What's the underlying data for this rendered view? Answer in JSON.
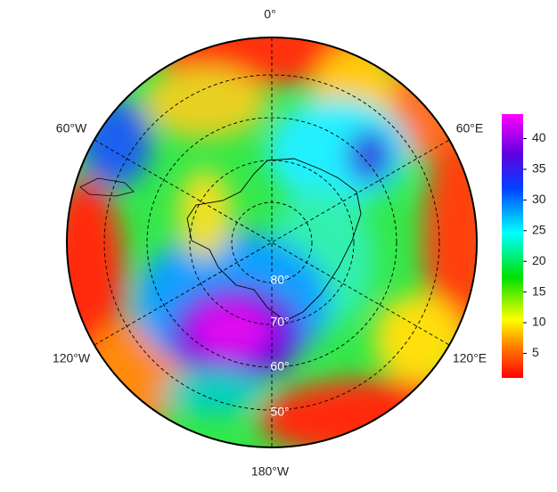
{
  "map": {
    "longitude_labels": {
      "top": "0°",
      "upper_left": "60°W",
      "upper_right": "60°E",
      "lower_left": "120°W",
      "lower_right": "120°E",
      "bottom": "180°W"
    },
    "latitude_labels": [
      "80°",
      "70°",
      "60°",
      "50°"
    ],
    "colorbar": {
      "lim": [
        1,
        44
      ],
      "ticks": [
        5,
        10,
        15,
        20,
        25,
        30,
        35,
        40
      ]
    }
  }
}
